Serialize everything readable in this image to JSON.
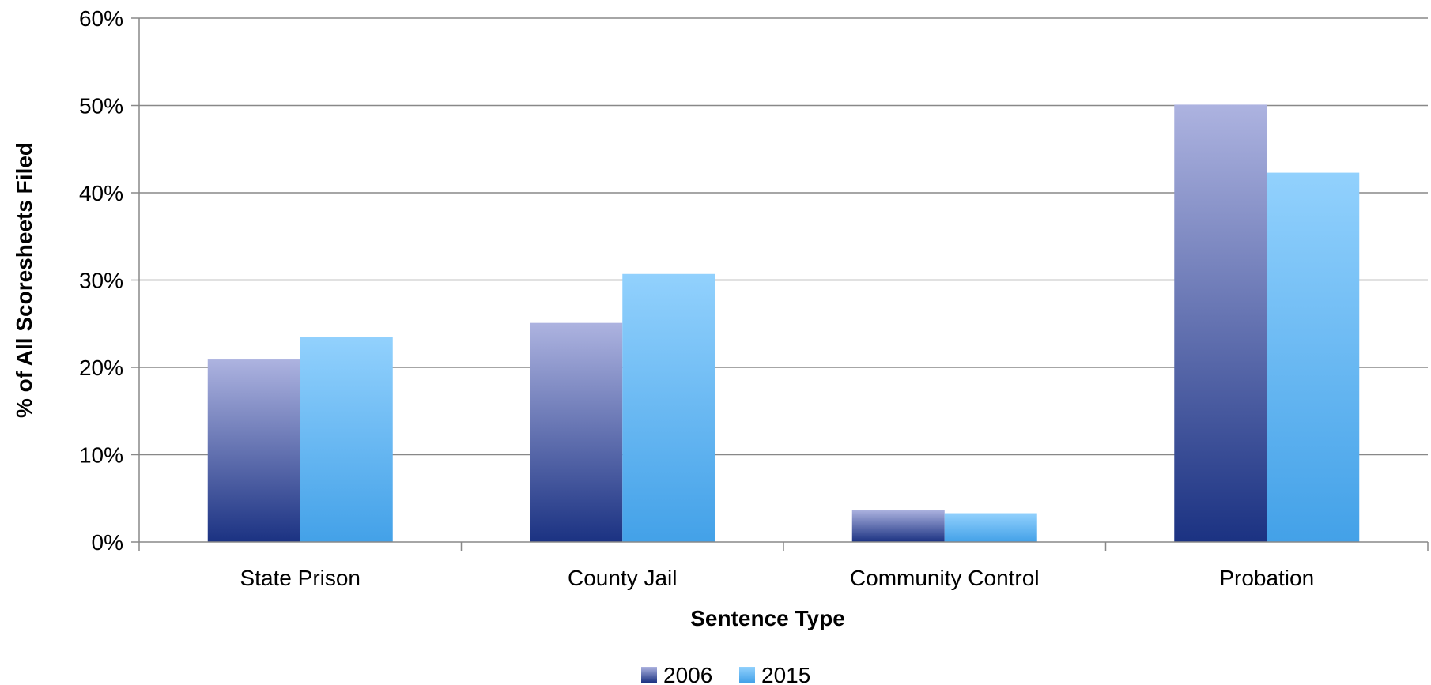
{
  "chart_data": {
    "type": "bar",
    "title": "",
    "xlabel": "Sentence Type",
    "ylabel": "% of All Scoresheets Filed",
    "categories": [
      "State Prison",
      "County Jail",
      "Community Control",
      "Probation"
    ],
    "series": [
      {
        "name": "2006",
        "values": [
          20.9,
          25.1,
          3.7,
          50.1
        ]
      },
      {
        "name": "2015",
        "values": [
          23.5,
          30.7,
          3.3,
          42.3
        ]
      }
    ],
    "ylim": [
      0,
      60
    ],
    "yticks": [
      0,
      10,
      20,
      30,
      40,
      50,
      60
    ],
    "ytick_labels": [
      "0%",
      "10%",
      "20%",
      "30%",
      "40%",
      "50%",
      "60%"
    ],
    "grid": true,
    "legend_position": "bottom",
    "colors": {
      "2006_top": "#adb3e0",
      "2006_bottom": "#1b3282",
      "2015_top": "#92d1fd",
      "2015_bottom": "#43a1e8",
      "gridline": "#888888",
      "axis": "#888888"
    }
  }
}
